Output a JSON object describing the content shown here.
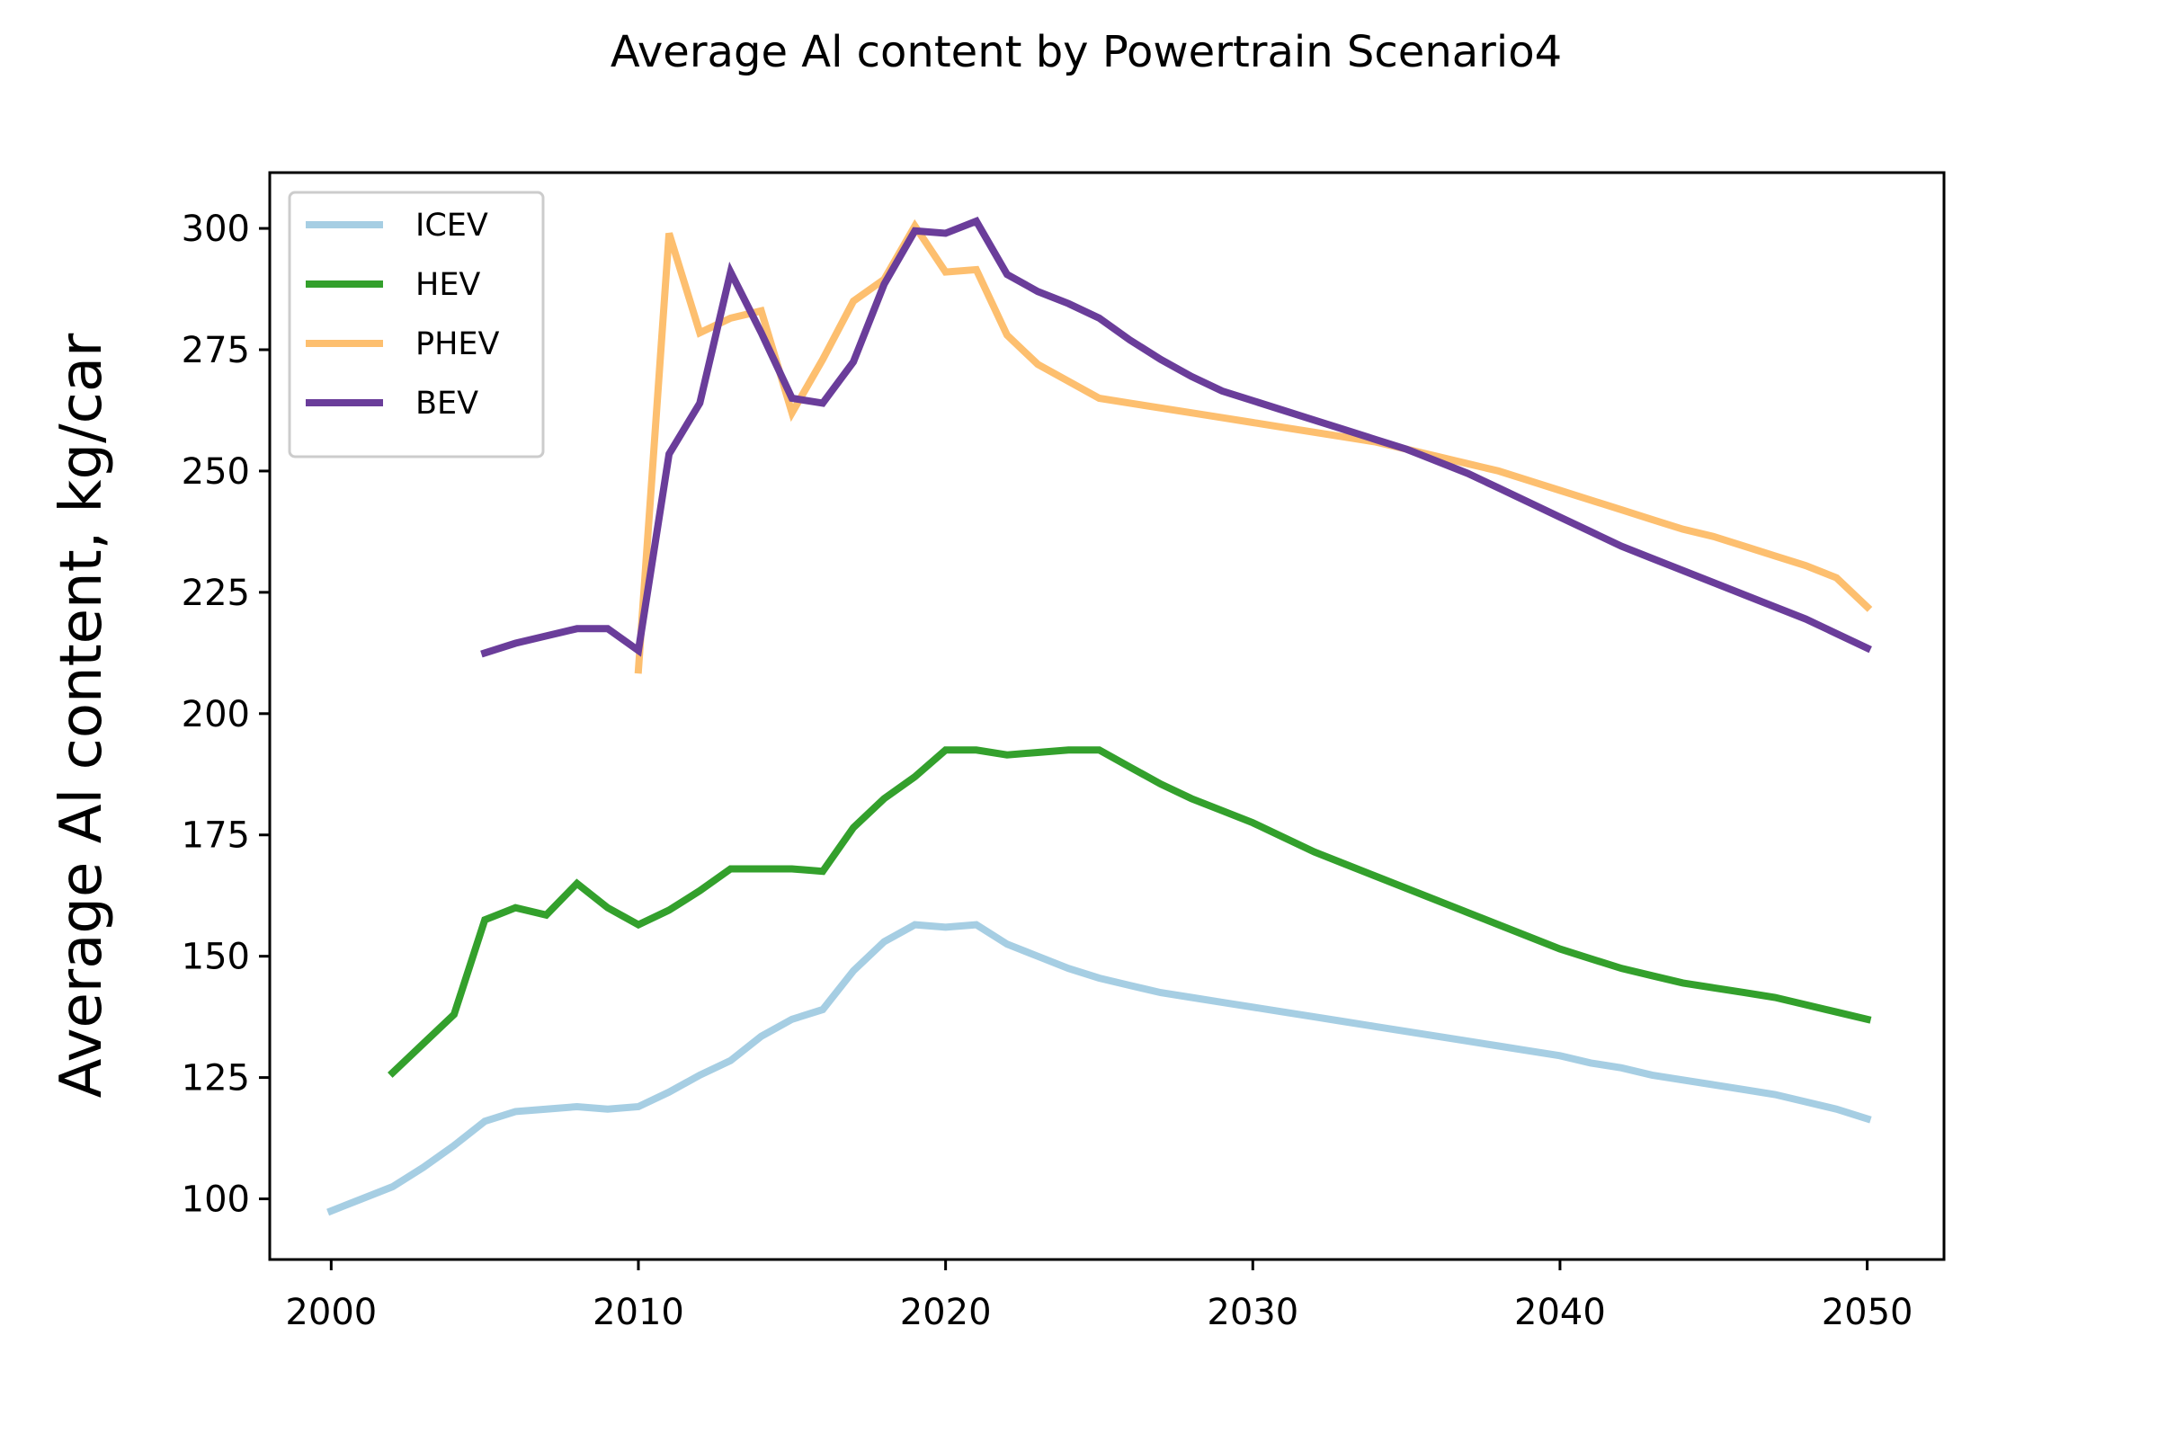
{
  "chart_data": {
    "type": "line",
    "title": "Average Al content by Powertrain Scenario4",
    "xlabel": "",
    "ylabel": "Average Al content, kg/car",
    "xlim": [
      1998,
      2052.5
    ],
    "ylim": [
      87.5,
      311.5
    ],
    "x_ticks": [
      2000,
      2010,
      2020,
      2030,
      2040,
      2050
    ],
    "y_ticks": [
      100,
      125,
      150,
      175,
      200,
      225,
      250,
      275,
      300
    ],
    "grid": false,
    "legend_position": "top-left",
    "series": [
      {
        "name": "ICEV",
        "color": "#a6cee3",
        "x": [
          2000,
          2001,
          2002,
          2003,
          2004,
          2005,
          2006,
          2007,
          2008,
          2009,
          2010,
          2011,
          2012,
          2013,
          2014,
          2015,
          2016,
          2017,
          2018,
          2019,
          2020,
          2021,
          2022,
          2023,
          2024,
          2025,
          2026,
          2027,
          2028,
          2029,
          2030,
          2031,
          2032,
          2033,
          2034,
          2035,
          2036,
          2037,
          2038,
          2039,
          2040,
          2041,
          2042,
          2043,
          2044,
          2045,
          2046,
          2047,
          2048,
          2049,
          2050
        ],
        "y": [
          97.5,
          100,
          102.5,
          106.5,
          111,
          116,
          118,
          118.5,
          119,
          118.5,
          119,
          122,
          125.5,
          128.5,
          133.5,
          137,
          139,
          147,
          153,
          156.5,
          156,
          156.5,
          152.5,
          150,
          147.5,
          145.5,
          144,
          142.5,
          141.5,
          140.5,
          139.5,
          138.5,
          137.5,
          136.5,
          135.5,
          134.5,
          133.5,
          132.5,
          131.5,
          130.5,
          129.5,
          128,
          127,
          125.5,
          124.5,
          123.5,
          122.5,
          121.5,
          120,
          118.5,
          116.5
        ]
      },
      {
        "name": "HEV",
        "color": "#33a02c",
        "x": [
          2002,
          2003,
          2004,
          2005,
          2006,
          2007,
          2008,
          2009,
          2010,
          2011,
          2012,
          2013,
          2014,
          2015,
          2016,
          2017,
          2018,
          2019,
          2020,
          2021,
          2022,
          2023,
          2024,
          2025,
          2026,
          2027,
          2028,
          2029,
          2030,
          2031,
          2032,
          2033,
          2034,
          2035,
          2036,
          2037,
          2038,
          2039,
          2040,
          2041,
          2042,
          2043,
          2044,
          2045,
          2046,
          2047,
          2048,
          2049,
          2050
        ],
        "y": [
          126,
          132,
          138,
          157.5,
          160,
          158.5,
          165,
          160,
          156.5,
          159.5,
          163.5,
          168,
          168,
          168,
          167.5,
          176.5,
          182.5,
          187,
          192.5,
          192.5,
          191.5,
          192,
          192.5,
          192.5,
          189,
          185.5,
          182.5,
          180,
          177.5,
          174.5,
          171.5,
          169,
          166.5,
          164,
          161.5,
          159,
          156.5,
          154,
          151.5,
          149.5,
          147.5,
          146,
          144.5,
          143.5,
          142.5,
          141.5,
          140,
          138.5,
          137
        ]
      },
      {
        "name": "PHEV",
        "color": "#fdbf6f",
        "x": [
          2010,
          2011,
          2012,
          2013,
          2014,
          2015,
          2016,
          2017,
          2018,
          2019,
          2020,
          2021,
          2022,
          2023,
          2024,
          2025,
          2026,
          2027,
          2028,
          2029,
          2030,
          2031,
          2032,
          2033,
          2034,
          2035,
          2036,
          2037,
          2038,
          2039,
          2040,
          2041,
          2042,
          2043,
          2044,
          2045,
          2046,
          2047,
          2048,
          2049,
          2050
        ],
        "y": [
          209,
          299,
          278.5,
          281.5,
          283,
          262,
          273,
          285,
          289.5,
          300.5,
          291,
          291.5,
          278,
          272,
          268.5,
          265,
          264,
          263,
          262,
          261,
          260,
          259,
          258,
          257,
          256,
          254.5,
          253,
          251.5,
          250,
          248,
          246,
          244,
          242,
          240,
          238,
          236.5,
          234.5,
          232.5,
          230.5,
          228,
          222
        ]
      },
      {
        "name": "BEV",
        "color": "#6a3d9a",
        "x": [
          2005,
          2006,
          2007,
          2008,
          2009,
          2010,
          2011,
          2012,
          2013,
          2014,
          2015,
          2016,
          2017,
          2018,
          2019,
          2020,
          2021,
          2022,
          2023,
          2024,
          2025,
          2026,
          2027,
          2028,
          2029,
          2030,
          2031,
          2032,
          2033,
          2034,
          2035,
          2036,
          2037,
          2038,
          2039,
          2040,
          2041,
          2042,
          2043,
          2044,
          2045,
          2046,
          2047,
          2048,
          2049,
          2050
        ],
        "y": [
          212.5,
          214.5,
          216,
          217.5,
          217.5,
          213,
          253.5,
          264,
          291,
          278.5,
          265,
          264,
          272.5,
          288.5,
          299.5,
          299,
          301.5,
          290.5,
          287,
          284.5,
          281.5,
          277,
          273,
          269.5,
          266.5,
          264.5,
          262.5,
          260.5,
          258.5,
          256.5,
          254.5,
          252,
          249.5,
          246.5,
          243.5,
          240.5,
          237.5,
          234.5,
          232,
          229.5,
          227,
          224.5,
          222,
          219.5,
          216.5,
          213.5
        ]
      }
    ]
  }
}
